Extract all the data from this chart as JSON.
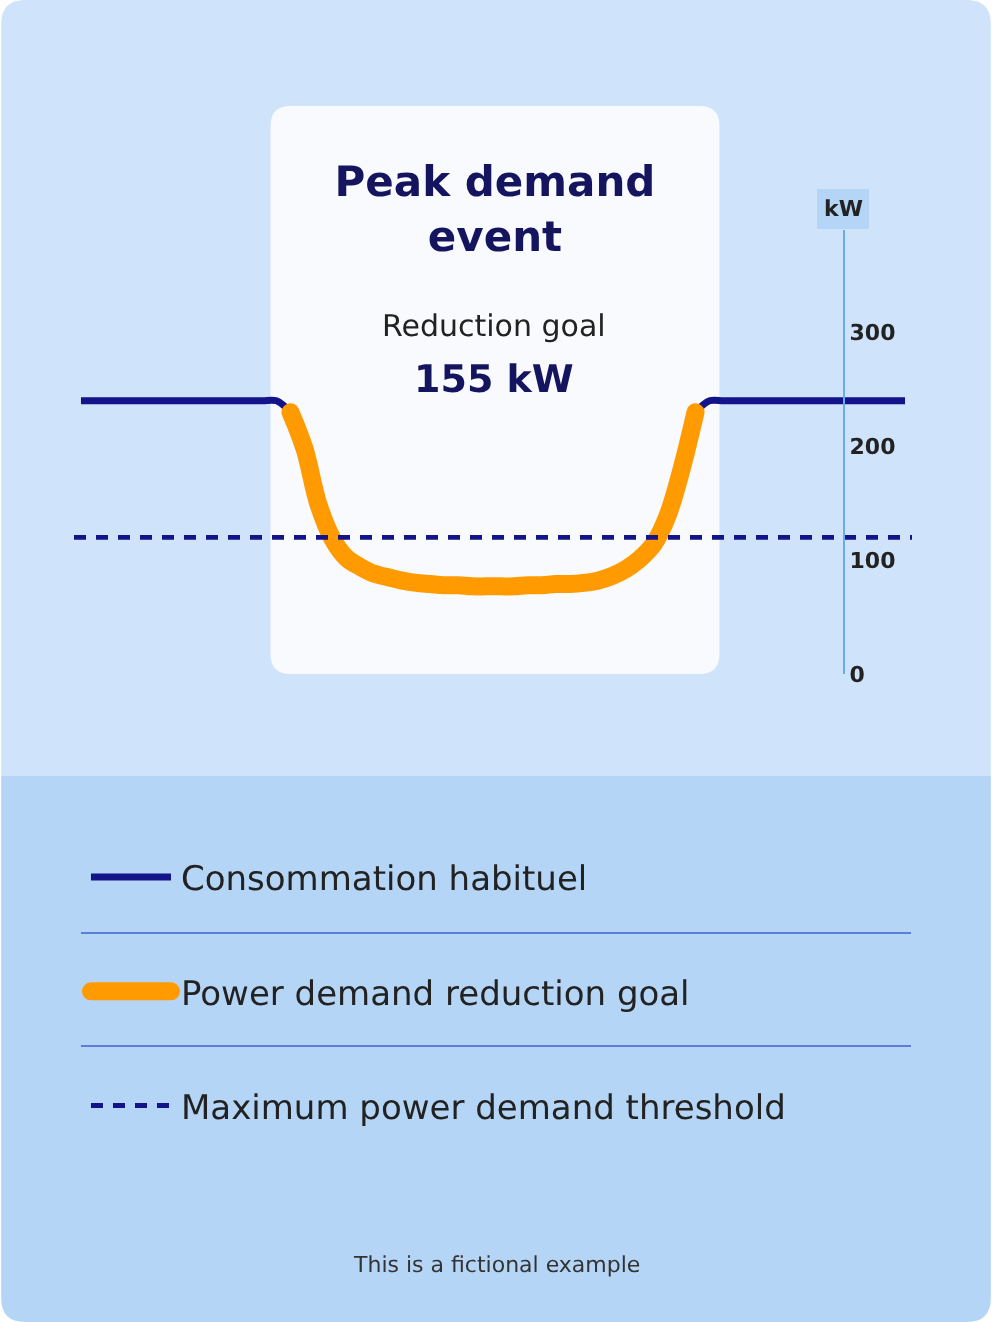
{
  "chart_data": {
    "type": "line",
    "title": "Peak demand event",
    "subtitle": "Reduction goal",
    "ylabel": "kW",
    "annotations": [
      "155 kW",
      "This is a fictional example"
    ],
    "categories": [
      null,
      null,
      null,
      null,
      null,
      null,
      null,
      null,
      null,
      null,
      null,
      null,
      null,
      null,
      null,
      null,
      null,
      null,
      null,
      null,
      null,
      null,
      null,
      null,
      null,
      null,
      null,
      null,
      null,
      null,
      null,
      null,
      null,
      null,
      null,
      null,
      null,
      null,
      null,
      null,
      null,
      null,
      null,
      null,
      null,
      null,
      null,
      null,
      null,
      null,
      null,
      null,
      null,
      null,
      null,
      null,
      null,
      null,
      null,
      null
    ],
    "series": [
      {
        "name": "Consommation habituel",
        "color": "#13138a",
        "values": [
          240,
          240,
          240,
          240,
          240,
          240,
          240,
          240,
          240,
          240,
          240,
          240,
          240,
          240,
          240,
          230,
          null,
          null,
          null,
          null,
          null,
          null,
          null,
          null,
          null,
          null,
          null,
          null,
          null,
          null,
          null,
          null,
          null,
          null,
          null,
          null,
          null,
          null,
          null,
          null,
          null,
          null,
          null,
          null,
          230,
          240,
          240,
          240,
          240,
          240,
          240,
          240,
          240,
          240,
          240,
          240,
          240,
          240,
          240,
          240
        ]
      },
      {
        "name": "Power demand reduction goal",
        "color": "#ff9b00",
        "values": [
          null,
          null,
          null,
          null,
          null,
          null,
          null,
          null,
          null,
          null,
          null,
          null,
          null,
          null,
          null,
          230,
          198,
          149,
          119,
          102,
          94,
          88,
          85,
          82,
          80,
          79,
          78,
          78,
          77,
          77,
          77,
          77,
          78,
          78,
          79,
          79,
          80,
          82,
          86,
          92,
          101,
          114,
          139,
          180,
          230,
          null,
          null,
          null,
          null,
          null,
          null,
          null,
          null,
          null,
          null,
          null,
          null,
          null,
          null,
          null
        ]
      }
    ],
    "ref_lines": [
      {
        "axis": "y",
        "value": 120,
        "label": "Maximum power demand threshold",
        "color": "#13138a",
        "line_style": "dashed"
      }
    ],
    "ylim": [
      0,
      390
    ],
    "yticks": [
      0,
      100,
      200,
      300
    ],
    "tick_labels": "y",
    "legend": "bottom"
  }
}
